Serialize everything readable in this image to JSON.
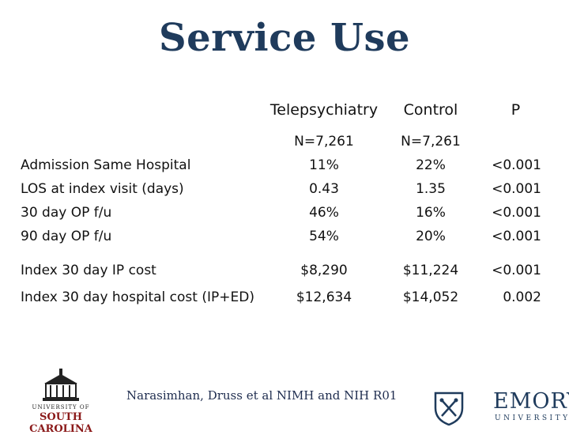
{
  "title": "Service Use",
  "headers": {
    "col1": "Telepsychiatry",
    "col2": "Control",
    "col3": "P"
  },
  "n_row": {
    "col1": "N=7,261",
    "col2": "N=7,261"
  },
  "rows": [
    {
      "label": "Admission Same Hospital",
      "tele": "11%",
      "control": "22%",
      "p": "<0.001"
    },
    {
      "label": "LOS at index visit (days)",
      "tele": "0.43",
      "control": "1.35",
      "p": "<0.001"
    },
    {
      "label": "30 day OP f/u",
      "tele": "46%",
      "control": "16%",
      "p": "<0.001"
    },
    {
      "label": "90 day OP f/u",
      "tele": "54%",
      "control": "20%",
      "p": "<0.001"
    },
    {
      "label": "Index  30 day IP cost",
      "tele": "$8,290",
      "control": "$11,224",
      "p": "<0.001"
    },
    {
      "label": "Index 30 day hospital cost (IP+ED)",
      "tele": "$12,634",
      "control": "$14,052",
      "p": "0.002"
    }
  ],
  "footer": {
    "citation": "Narasimhan, Druss et al NIMH and NIH R01",
    "usc_line1": "UNIVERSITY OF",
    "usc_line2": "SOUTH CAROLINA",
    "emory_line1": "EMORY",
    "emory_line2": "UNIVERSITY"
  }
}
